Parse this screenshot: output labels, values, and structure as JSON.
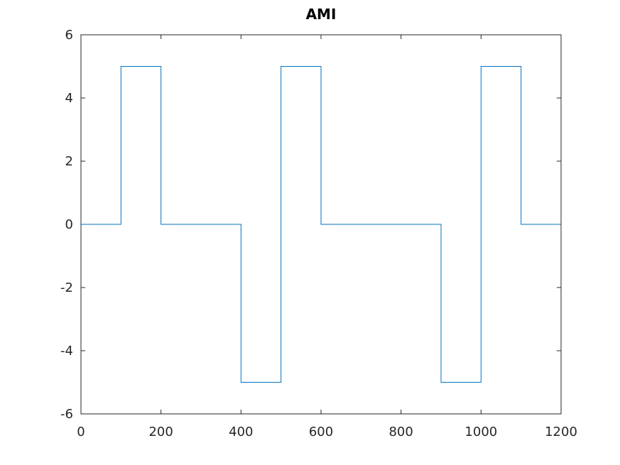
{
  "chart_data": {
    "type": "line",
    "title": "AMI",
    "xlabel": "",
    "ylabel": "",
    "xlim": [
      0,
      1200
    ],
    "ylim": [
      -6,
      6
    ],
    "xticks": [
      0,
      200,
      400,
      600,
      800,
      1000,
      1200
    ],
    "yticks": [
      -6,
      -4,
      -2,
      0,
      2,
      4,
      6
    ],
    "xtick_labels": [
      "0",
      "200",
      "400",
      "600",
      "800",
      "1000",
      "1200"
    ],
    "ytick_labels": [
      "-6",
      "-4",
      "-2",
      "0",
      "2",
      "4",
      "6"
    ],
    "grid": false,
    "series": [
      {
        "color": "#0072BD",
        "x": [
          0,
          100,
          100,
          200,
          200,
          400,
          400,
          500,
          500,
          600,
          600,
          900,
          900,
          1000,
          1000,
          1100,
          1100,
          1200
        ],
        "y": [
          0,
          0,
          5,
          5,
          0,
          0,
          -5,
          -5,
          5,
          5,
          0,
          0,
          -5,
          -5,
          5,
          5,
          0,
          0
        ]
      }
    ]
  }
}
